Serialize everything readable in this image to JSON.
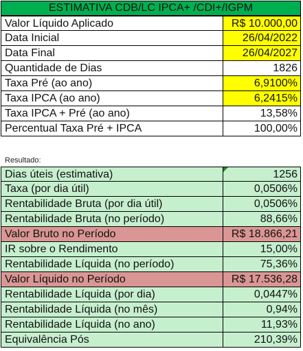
{
  "header": {
    "title": "ESTIMATIVA CDB/LC IPCA+ /CDI+/IGPM"
  },
  "inputs": [
    {
      "label": "Valor Líquido Aplicado",
      "value": "R$ 10.000,00",
      "hl": "yellow"
    },
    {
      "label": "Data Inicial",
      "value": "26/04/2022",
      "hl": "yellow"
    },
    {
      "label": "Data Final",
      "value": "26/04/2027",
      "hl": "yellow"
    },
    {
      "label": "Quantidade de Dias",
      "value": "1826",
      "hl": ""
    },
    {
      "label": "Taxa Pré (ao ano)",
      "value": "6,9100%",
      "hl": "yellow"
    },
    {
      "label": "Taxa IPCA (ao ano)",
      "value": "6,2415%",
      "hl": "yellow"
    },
    {
      "label": "Taxa IPCA + Pré (ao ano)",
      "value": "13,58%",
      "hl": ""
    },
    {
      "label": "Percentual Taxa Pré + IPCA",
      "value": "100,00%",
      "hl": ""
    }
  ],
  "results_label": "Resultado:",
  "results": [
    {
      "label": "Dias úteis (estimativa)",
      "value": "1256",
      "hl": "green"
    },
    {
      "label": "Taxa (por dia útil)",
      "value": "0,0506%",
      "hl": "green"
    },
    {
      "label": "Rentabilidade Bruta (por dia útil)",
      "value": "0,0506%",
      "hl": "green"
    },
    {
      "label": "Rentabilidade Bruta (no período)",
      "value": "88,66%",
      "hl": "green"
    },
    {
      "label": "Valor Bruto no Período",
      "value": "R$ 18.866,21",
      "hl": "pink"
    },
    {
      "label": "IR sobre o Rendimento",
      "value": "15,00%",
      "hl": "green"
    },
    {
      "label": "Rentabilidade Líquida (no período)",
      "value": "75,36%",
      "hl": "green"
    },
    {
      "label": "Valor Líquido no Período",
      "value": "R$ 17.536,28",
      "hl": "pink"
    },
    {
      "label": "Rentabilidade Líquida (por dia)",
      "value": "0,0447%",
      "hl": "green"
    },
    {
      "label": "Rentabilidade Líquida (no mês)",
      "value": "0,94%",
      "hl": "green"
    },
    {
      "label": "Rentabilidade Líquida (no ano)",
      "value": "11,93%",
      "hl": "green"
    },
    {
      "label": "Equivalência Pós",
      "value": "210,39%",
      "hl": "green"
    }
  ],
  "colors": {
    "header": "#00b050",
    "input_highlight": "#ffff00",
    "result_bg": "#c6efce",
    "result_highlight": "#da9694"
  }
}
